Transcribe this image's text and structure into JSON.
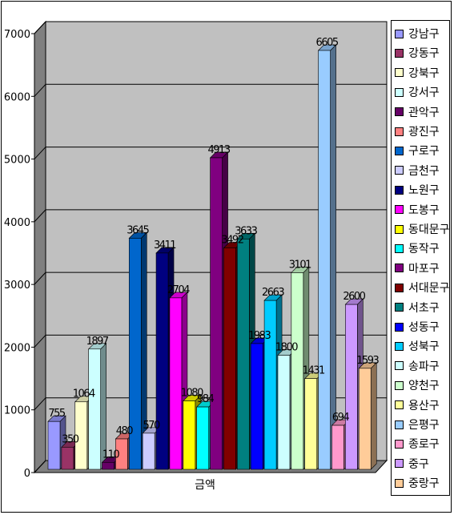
{
  "chart_data": {
    "type": "bar",
    "categories": [
      "금액"
    ],
    "xlabel": "",
    "ylabel": "",
    "title": "",
    "ylim": [
      0,
      7000
    ],
    "y_ticks": [
      0,
      1000,
      2000,
      3000,
      4000,
      5000,
      6000,
      7000
    ],
    "grid": true,
    "legend": "right",
    "style": "3d-clustered",
    "series": [
      {
        "name": "강남구",
        "values": [
          755
        ],
        "color": "#9999ff"
      },
      {
        "name": "강동구",
        "values": [
          350
        ],
        "color": "#993366"
      },
      {
        "name": "강북구",
        "values": [
          1064
        ],
        "color": "#ffffcc"
      },
      {
        "name": "강서구",
        "values": [
          1897
        ],
        "color": "#ccffff"
      },
      {
        "name": "관악구",
        "values": [
          110
        ],
        "color": "#660066"
      },
      {
        "name": "광진구",
        "values": [
          480
        ],
        "color": "#ff8080"
      },
      {
        "name": "구로구",
        "values": [
          3645
        ],
        "color": "#0066cc"
      },
      {
        "name": "금천구",
        "values": [
          570
        ],
        "color": "#ccccff"
      },
      {
        "name": "노원구",
        "values": [
          3411
        ],
        "color": "#000080"
      },
      {
        "name": "도봉구",
        "values": [
          2704
        ],
        "color": "#ff00ff"
      },
      {
        "name": "동대문구",
        "values": [
          1080
        ],
        "color": "#ffff00"
      },
      {
        "name": "동작구",
        "values": [
          984
        ],
        "color": "#00ffff"
      },
      {
        "name": "마포구",
        "values": [
          4913
        ],
        "color": "#800080"
      },
      {
        "name": "서대문구",
        "values": [
          3492
        ],
        "color": "#800000"
      },
      {
        "name": "서초구",
        "values": [
          3633
        ],
        "color": "#008080"
      },
      {
        "name": "성동구",
        "values": [
          1983
        ],
        "color": "#0000ff"
      },
      {
        "name": "성북구",
        "values": [
          2663
        ],
        "color": "#00ccff"
      },
      {
        "name": "송파구",
        "values": [
          1800
        ],
        "color": "#ccffff"
      },
      {
        "name": "양천구",
        "values": [
          3101
        ],
        "color": "#ccffcc"
      },
      {
        "name": "용산구",
        "values": [
          1431
        ],
        "color": "#ffff99"
      },
      {
        "name": "은평구",
        "values": [
          6605
        ],
        "color": "#99ccff"
      },
      {
        "name": "종로구",
        "values": [
          694
        ],
        "color": "#ff99cc"
      },
      {
        "name": "중구",
        "values": [
          2600
        ],
        "color": "#cc99ff"
      },
      {
        "name": "중랑구",
        "values": [
          1593
        ],
        "color": "#ffcc99"
      }
    ],
    "data_labels": [
      "755",
      "350",
      "1064",
      "1897",
      "110",
      "480",
      "3645",
      "570",
      "3411",
      "2704",
      "1080",
      "984",
      "4913",
      "3492",
      "3633",
      "1983",
      "2663",
      "1800",
      "3101",
      "1431",
      "6605",
      "694",
      "2600",
      "1593"
    ]
  },
  "colors": {
    "plot_back": "#c0c0c0",
    "plot_side": "#808080",
    "floor": "#808080",
    "grid": "#000000"
  }
}
